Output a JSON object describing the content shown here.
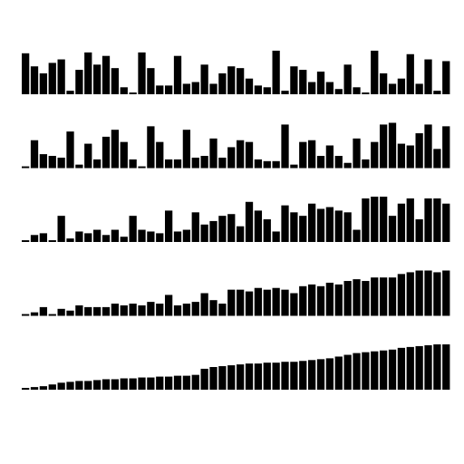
{
  "chart_data": [
    {
      "type": "bar",
      "color": "#000000",
      "ylim": [
        0,
        52
      ],
      "values": [
        47,
        32,
        24,
        36,
        40,
        4,
        28,
        48,
        34,
        44,
        30,
        8,
        2,
        48,
        30,
        10,
        10,
        44,
        12,
        14,
        34,
        12,
        24,
        32,
        30,
        18,
        10,
        8,
        50,
        4,
        32,
        28,
        14,
        26,
        14,
        6,
        34,
        8,
        2,
        50,
        24,
        12,
        18,
        46,
        12,
        40,
        4,
        38
      ]
    },
    {
      "type": "bar",
      "color": "#000000",
      "ylim": [
        0,
        52
      ],
      "values": [
        2,
        32,
        16,
        14,
        12,
        42,
        4,
        28,
        10,
        36,
        44,
        30,
        10,
        2,
        48,
        30,
        10,
        10,
        44,
        12,
        14,
        34,
        12,
        24,
        32,
        30,
        10,
        8,
        8,
        50,
        4,
        30,
        32,
        14,
        26,
        14,
        6,
        34,
        10,
        30,
        50,
        52,
        28,
        26,
        40,
        50,
        22,
        48
      ]
    },
    {
      "type": "bar",
      "color": "#000000",
      "ylim": [
        0,
        52
      ],
      "values": [
        2,
        8,
        10,
        2,
        30,
        4,
        12,
        10,
        14,
        8,
        14,
        6,
        30,
        14,
        12,
        10,
        36,
        12,
        14,
        34,
        20,
        24,
        30,
        32,
        18,
        46,
        36,
        26,
        12,
        42,
        34,
        30,
        44,
        38,
        40,
        36,
        34,
        14,
        50,
        52,
        52,
        30,
        44,
        50,
        26,
        50,
        50,
        44
      ]
    },
    {
      "type": "bar",
      "color": "#000000",
      "ylim": [
        0,
        52
      ],
      "values": [
        2,
        4,
        10,
        2,
        8,
        6,
        12,
        10,
        10,
        10,
        14,
        12,
        14,
        12,
        16,
        14,
        24,
        12,
        14,
        16,
        26,
        18,
        14,
        30,
        30,
        28,
        32,
        30,
        32,
        30,
        26,
        34,
        36,
        34,
        38,
        36,
        40,
        42,
        40,
        44,
        44,
        44,
        48,
        50,
        52,
        52,
        50,
        52
      ]
    },
    {
      "type": "bar",
      "color": "#000000",
      "ylim": [
        0,
        52
      ],
      "values": [
        2,
        3,
        4,
        6,
        8,
        9,
        10,
        10,
        11,
        12,
        12,
        13,
        13,
        14,
        14,
        15,
        15,
        16,
        16,
        17,
        24,
        26,
        27,
        28,
        29,
        30,
        30,
        31,
        31,
        32,
        32,
        33,
        34,
        35,
        36,
        38,
        40,
        42,
        43,
        44,
        45,
        46,
        48,
        49,
        50,
        51,
        52,
        52
      ]
    }
  ]
}
